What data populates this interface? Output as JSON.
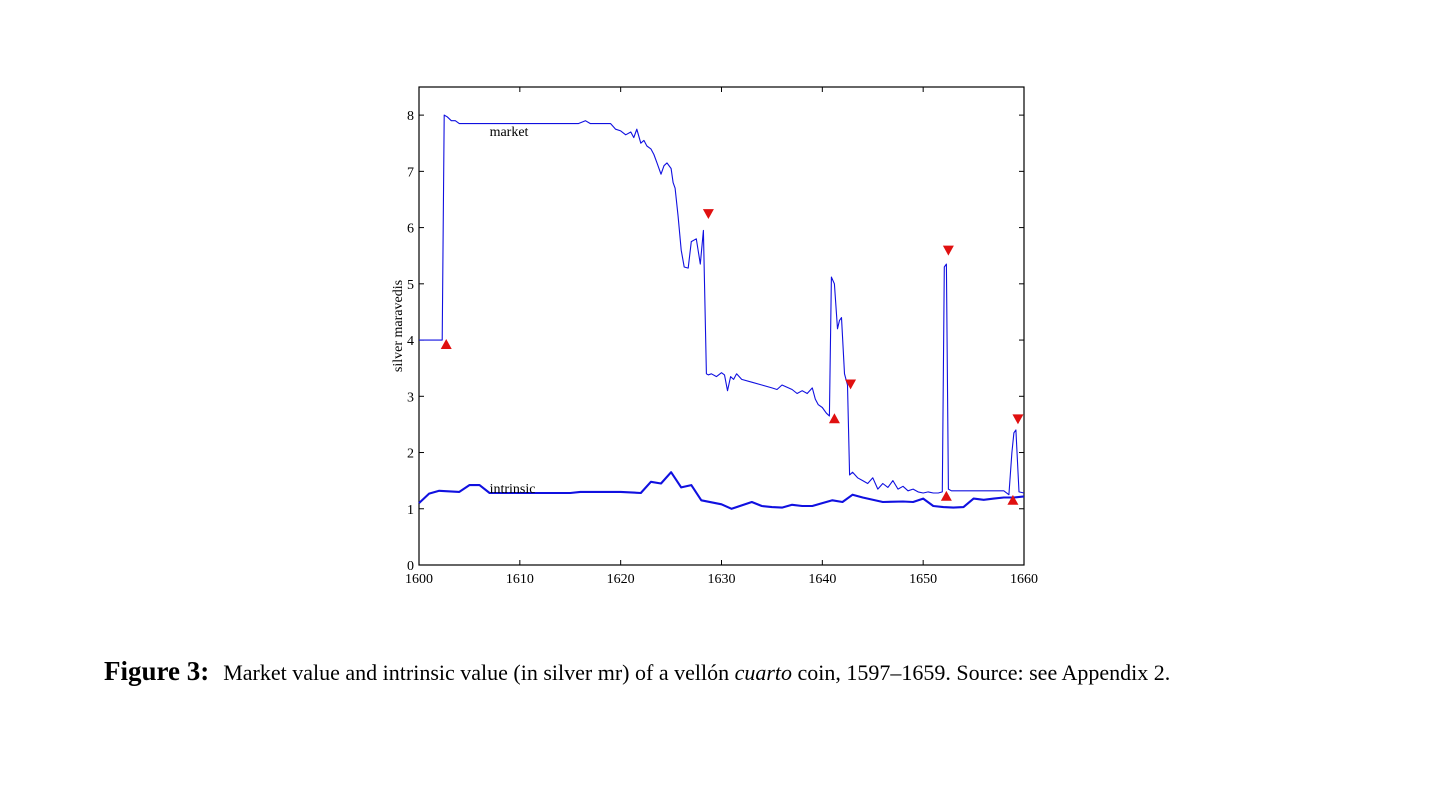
{
  "chart_data": {
    "type": "line",
    "title": "",
    "xlabel": "",
    "ylabel": "silver maravedis",
    "xlim": [
      1600,
      1660
    ],
    "ylim": [
      0,
      8.5
    ],
    "xticks": [
      1600,
      1610,
      1620,
      1630,
      1640,
      1650,
      1660
    ],
    "yticks": [
      0,
      1,
      2,
      3,
      4,
      5,
      6,
      7,
      8
    ],
    "grid": false,
    "legend": "none",
    "series": [
      {
        "name": "market",
        "color": "#1010e0",
        "x": [
          1600,
          1602.3,
          1602.5,
          1602.8,
          1603.2,
          1603.6,
          1604,
          1605,
          1610,
          1615,
          1615.8,
          1616.5,
          1617,
          1618,
          1619,
          1619.5,
          1620,
          1620.5,
          1621,
          1621.3,
          1621.6,
          1622,
          1622.3,
          1622.6,
          1623,
          1623.3,
          1623.6,
          1624,
          1624.3,
          1624.6,
          1625,
          1625.2,
          1625.4,
          1625.7,
          1626,
          1626.3,
          1626.7,
          1627,
          1627.5,
          1627.9,
          1628.2,
          1628.5,
          1628.7,
          1629,
          1629.5,
          1630,
          1630.3,
          1630.6,
          1630.9,
          1631.2,
          1631.5,
          1632,
          1633,
          1634,
          1635,
          1635.5,
          1636,
          1637,
          1637.5,
          1638,
          1638.5,
          1639,
          1639.3,
          1639.6,
          1640,
          1640.4,
          1640.7,
          1640.9,
          1641.2,
          1641.5,
          1641.7,
          1641.9,
          1642.2,
          1642.5,
          1642.7,
          1643,
          1643.5,
          1644,
          1644.5,
          1645,
          1645.5,
          1646,
          1646.5,
          1647,
          1647.5,
          1648,
          1648.5,
          1649,
          1649.5,
          1650,
          1650.5,
          1651,
          1651.5,
          1651.9,
          1652.1,
          1652.3,
          1652.5,
          1652.8,
          1653,
          1655,
          1658,
          1658.5,
          1658.8,
          1659,
          1659.2,
          1659.5,
          1660
        ],
        "y": [
          4.0,
          4.0,
          8.0,
          7.97,
          7.9,
          7.9,
          7.85,
          7.85,
          7.85,
          7.85,
          7.85,
          7.9,
          7.85,
          7.85,
          7.85,
          7.75,
          7.72,
          7.65,
          7.7,
          7.6,
          7.75,
          7.5,
          7.55,
          7.45,
          7.4,
          7.3,
          7.15,
          6.95,
          7.1,
          7.15,
          7.05,
          6.8,
          6.7,
          6.2,
          5.6,
          5.3,
          5.28,
          5.75,
          5.8,
          5.35,
          5.95,
          3.4,
          3.38,
          3.4,
          3.35,
          3.42,
          3.38,
          3.1,
          3.35,
          3.3,
          3.4,
          3.3,
          3.25,
          3.2,
          3.15,
          3.12,
          3.2,
          3.12,
          3.05,
          3.1,
          3.05,
          3.15,
          2.95,
          2.85,
          2.8,
          2.7,
          2.65,
          5.12,
          5.0,
          4.2,
          4.35,
          4.4,
          3.4,
          3.2,
          1.6,
          1.65,
          1.55,
          1.5,
          1.45,
          1.55,
          1.35,
          1.45,
          1.38,
          1.5,
          1.35,
          1.4,
          1.32,
          1.35,
          1.3,
          1.28,
          1.3,
          1.28,
          1.28,
          1.3,
          5.3,
          5.35,
          1.35,
          1.32,
          1.32,
          1.32,
          1.32,
          1.25,
          2.0,
          2.35,
          2.4,
          1.3,
          1.28
        ]
      },
      {
        "name": "intrinsic",
        "color": "#1010e0",
        "x": [
          1600,
          1601,
          1602,
          1604,
          1605,
          1606,
          1607,
          1612,
          1615,
          1616,
          1618,
          1620,
          1622,
          1623,
          1624,
          1625,
          1626,
          1627,
          1628,
          1630,
          1631,
          1633,
          1634,
          1635,
          1636,
          1637,
          1638,
          1639,
          1640,
          1641,
          1642,
          1643,
          1644,
          1646,
          1648,
          1649,
          1650,
          1651,
          1652,
          1653,
          1654,
          1655,
          1656,
          1657,
          1658,
          1659,
          1660
        ],
        "y": [
          1.1,
          1.27,
          1.32,
          1.3,
          1.42,
          1.42,
          1.28,
          1.28,
          1.28,
          1.3,
          1.3,
          1.3,
          1.28,
          1.48,
          1.45,
          1.65,
          1.38,
          1.42,
          1.15,
          1.08,
          1.0,
          1.12,
          1.05,
          1.03,
          1.02,
          1.07,
          1.05,
          1.05,
          1.1,
          1.15,
          1.12,
          1.25,
          1.2,
          1.12,
          1.13,
          1.12,
          1.18,
          1.05,
          1.03,
          1.02,
          1.03,
          1.18,
          1.16,
          1.18,
          1.2,
          1.2,
          1.22
        ]
      }
    ],
    "annotations": [
      {
        "text": "market",
        "x": 1607,
        "y": 7.7
      },
      {
        "text": "intrinsic",
        "x": 1607,
        "y": 1.35
      }
    ],
    "markers": [
      {
        "direction": "up",
        "x": 1602.7,
        "y": 3.92,
        "color": "#e01010"
      },
      {
        "direction": "down",
        "x": 1628.7,
        "y": 6.25,
        "color": "#e01010"
      },
      {
        "direction": "up",
        "x": 1641.2,
        "y": 2.6,
        "color": "#e01010"
      },
      {
        "direction": "down",
        "x": 1642.8,
        "y": 3.22,
        "color": "#e01010"
      },
      {
        "direction": "up",
        "x": 1652.3,
        "y": 1.22,
        "color": "#e01010"
      },
      {
        "direction": "down",
        "x": 1652.5,
        "y": 5.6,
        "color": "#e01010"
      },
      {
        "direction": "up",
        "x": 1658.9,
        "y": 1.15,
        "color": "#e01010"
      },
      {
        "direction": "down",
        "x": 1659.4,
        "y": 2.6,
        "color": "#e01010"
      }
    ]
  },
  "caption": {
    "label": "Figure 3:",
    "text_before": "Market value and intrinsic value (in silver mr) of a vellón ",
    "text_italic": "cuarto",
    "text_after": " coin, 1597–1659.  Source: see Appendix 2."
  }
}
